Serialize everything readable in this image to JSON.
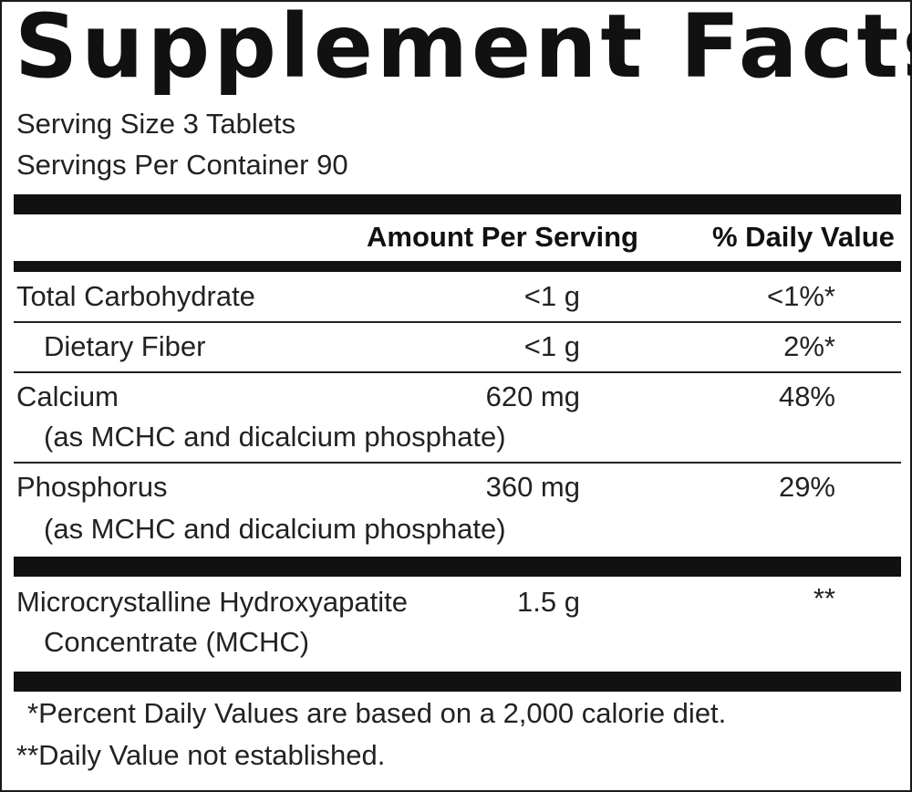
{
  "title": "Supplement Facts",
  "serving_size": "Serving Size 3 Tablets",
  "servings_per_container": "Servings Per Container 90",
  "columns": {
    "amount": "Amount Per Serving",
    "daily_value": "% Daily Value"
  },
  "rows": [
    {
      "name": "Total Carbohydrate",
      "sub": "",
      "amount": "<1 g",
      "dv": "<1%*"
    },
    {
      "name": "Dietary Fiber",
      "sub": "",
      "amount": "<1 g",
      "dv": "2%*"
    },
    {
      "name": "Calcium",
      "sub": "(as MCHC and dicalcium phosphate)",
      "amount": "620 mg",
      "dv": "48%"
    },
    {
      "name": "Phosphorus",
      "sub": "(as MCHC and dicalcium phosphate)",
      "amount": "360 mg",
      "dv": "29%"
    },
    {
      "name": "Microcrystalline Hydroxyapatite",
      "sub": "Concentrate (MCHC)",
      "amount": "1.5 g",
      "dv": "**"
    }
  ],
  "footnotes": [
    "*Percent Daily Values are based on a 2,000 calorie diet.",
    "**Daily Value not established."
  ]
}
